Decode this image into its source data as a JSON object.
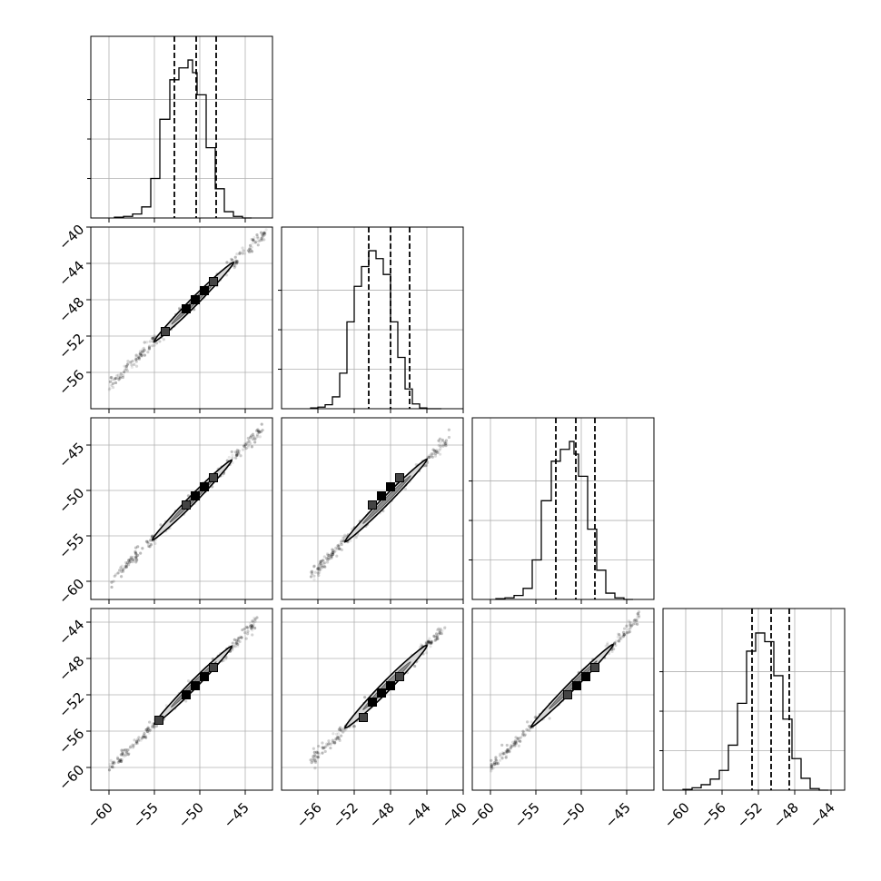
{
  "chart_data": {
    "type": "corner",
    "title": "",
    "grid": true,
    "quantile_line_style": "dashed",
    "variables": [
      {
        "index": 0,
        "range": [
          -62,
          -42
        ],
        "ticks": [
          -60,
          -55,
          -50,
          -45
        ],
        "tick_labels": [
          "−60",
          "−55",
          "−50",
          "−45"
        ]
      },
      {
        "index": 1,
        "range": [
          -60,
          -40
        ],
        "ticks": [
          -56,
          -52,
          -48,
          -44,
          -40
        ],
        "tick_labels": [
          "−56",
          "−52",
          "−48",
          "−44",
          "−40"
        ]
      },
      {
        "index": 2,
        "range": [
          -62,
          -42
        ],
        "ticks": [
          -60,
          -55,
          -50,
          -45
        ],
        "tick_labels": [
          "−60",
          "−55",
          "−50",
          "−45"
        ]
      },
      {
        "index": 3,
        "range": [
          -62.5,
          -42.5
        ],
        "ticks": [
          -60,
          -56,
          -52,
          -48,
          -44
        ],
        "tick_labels": [
          "−60",
          "−56",
          "−52",
          "−48",
          "−44"
        ]
      }
    ],
    "histograms": [
      {
        "var": 0,
        "bins": [
          -59.4,
          -58.4,
          -57.4,
          -56.4,
          -55.4,
          -54.4,
          -53.3,
          -52.3,
          -51.3,
          -50.8,
          -50.3,
          -49.3,
          -48.3,
          -47.3,
          -46.3,
          -45.3,
          -44.3
        ],
        "counts": [
          1,
          2,
          5,
          14,
          50,
          125,
          175,
          190,
          200,
          184,
          156,
          89,
          37,
          8,
          2,
          0
        ],
        "quantiles": [
          -52.8,
          -50.4,
          -48.2
        ]
      },
      {
        "var": 1,
        "bins": [
          -56.8,
          -56.0,
          -55.2,
          -54.4,
          -53.6,
          -52.8,
          -52.0,
          -51.2,
          -50.4,
          -49.6,
          -48.8,
          -48.0,
          -47.2,
          -46.4,
          -45.6,
          -44.8,
          -44.0,
          -43.2,
          -42.4
        ],
        "counts": [
          1,
          2,
          5,
          15,
          45,
          110,
          155,
          180,
          200,
          190,
          170,
          110,
          65,
          25,
          6,
          1,
          0,
          0
        ],
        "quantiles": [
          -50.4,
          -48.0,
          -45.9
        ]
      },
      {
        "var": 2,
        "bins": [
          -59.4,
          -58.4,
          -57.4,
          -56.4,
          -55.4,
          -54.4,
          -53.3,
          -52.3,
          -51.3,
          -50.8,
          -50.3,
          -49.3,
          -48.3,
          -47.3,
          -46.3,
          -45.3,
          -44.3
        ],
        "counts": [
          1,
          2,
          5,
          14,
          50,
          125,
          175,
          190,
          200,
          184,
          156,
          89,
          37,
          8,
          2,
          0
        ],
        "quantiles": [
          -52.8,
          -50.6,
          -48.5
        ]
      },
      {
        "var": 3,
        "bins": [
          -60.3,
          -59.3,
          -58.3,
          -57.3,
          -56.3,
          -55.3,
          -54.3,
          -53.3,
          -52.3,
          -51.3,
          -50.3,
          -49.3,
          -48.3,
          -47.3,
          -46.3,
          -45.3,
          -44.3
        ],
        "counts": [
          1,
          3,
          7,
          14,
          25,
          57,
          110,
          176,
          199,
          188,
          145,
          90,
          40,
          15,
          2,
          0
        ],
        "quantiles": [
          -52.7,
          -50.6,
          -48.6
        ]
      }
    ],
    "scatter_panels": [
      {
        "x_var": 0,
        "y_var": 1,
        "slope": 0.99,
        "center": [
          -50.4,
          -48.0
        ],
        "span": [
          -60.0,
          -42.5
        ],
        "contour_halfwidth": 0.55,
        "contour_span": [
          -55.0,
          -46.3
        ],
        "core_points": [
          [
            -53.8,
            -51.5
          ],
          [
            -51.5,
            -49.0
          ],
          [
            -50.5,
            -48.0
          ],
          [
            -49.5,
            -47.0
          ],
          [
            -48.5,
            -46.0
          ]
        ]
      },
      {
        "x_var": 0,
        "y_var": 2,
        "slope": 1.0,
        "center": [
          -50.4,
          -50.6
        ],
        "span": [
          -60.0,
          -43.0
        ],
        "contour_halfwidth": 0.55,
        "contour_span": [
          -55.2,
          -46.5
        ],
        "core_points": [
          [
            -51.5,
            -51.6
          ],
          [
            -50.5,
            -50.6
          ],
          [
            -49.5,
            -49.6
          ],
          [
            -48.5,
            -48.6
          ]
        ]
      },
      {
        "x_var": 0,
        "y_var": 3,
        "slope": 1.0,
        "center": [
          -50.4,
          -50.6
        ],
        "span": [
          -60.0,
          -43.5
        ],
        "contour_halfwidth": 0.55,
        "contour_span": [
          -55.0,
          -46.5
        ],
        "core_points": [
          [
            -54.5,
            -54.8
          ],
          [
            -51.5,
            -52.0
          ],
          [
            -50.5,
            -51.0
          ],
          [
            -49.5,
            -50.0
          ],
          [
            -48.5,
            -49.0
          ]
        ]
      },
      {
        "x_var": 1,
        "y_var": 2,
        "slope": 1.0,
        "center": [
          -48.0,
          -50.6
        ],
        "span": [
          -56.8,
          -41.5
        ],
        "contour_halfwidth": 0.55,
        "contour_span": [
          -53.0,
          -44.0
        ],
        "core_points": [
          [
            -50.0,
            -51.6
          ],
          [
            -49.0,
            -50.6
          ],
          [
            -48.0,
            -49.6
          ],
          [
            -47.0,
            -48.6
          ]
        ]
      },
      {
        "x_var": 1,
        "y_var": 3,
        "slope": 1.0,
        "center": [
          -48.0,
          -50.6
        ],
        "span": [
          -56.8,
          -42.0
        ],
        "contour_halfwidth": 0.7,
        "contour_span": [
          -53.0,
          -44.0
        ],
        "core_points": [
          [
            -51.0,
            -54.5
          ],
          [
            -50.0,
            -52.8
          ],
          [
            -49.0,
            -51.8
          ],
          [
            -48.0,
            -51.0
          ],
          [
            -47.0,
            -50.0
          ]
        ]
      },
      {
        "x_var": 2,
        "y_var": 3,
        "slope": 1.0,
        "center": [
          -50.6,
          -50.6
        ],
        "span": [
          -60.0,
          -43.5
        ],
        "contour_halfwidth": 0.55,
        "contour_span": [
          -55.5,
          -46.5
        ],
        "core_points": [
          [
            -51.5,
            -52.0
          ],
          [
            -50.5,
            -51.0
          ],
          [
            -49.5,
            -50.0
          ],
          [
            -48.5,
            -49.0
          ]
        ]
      }
    ]
  }
}
